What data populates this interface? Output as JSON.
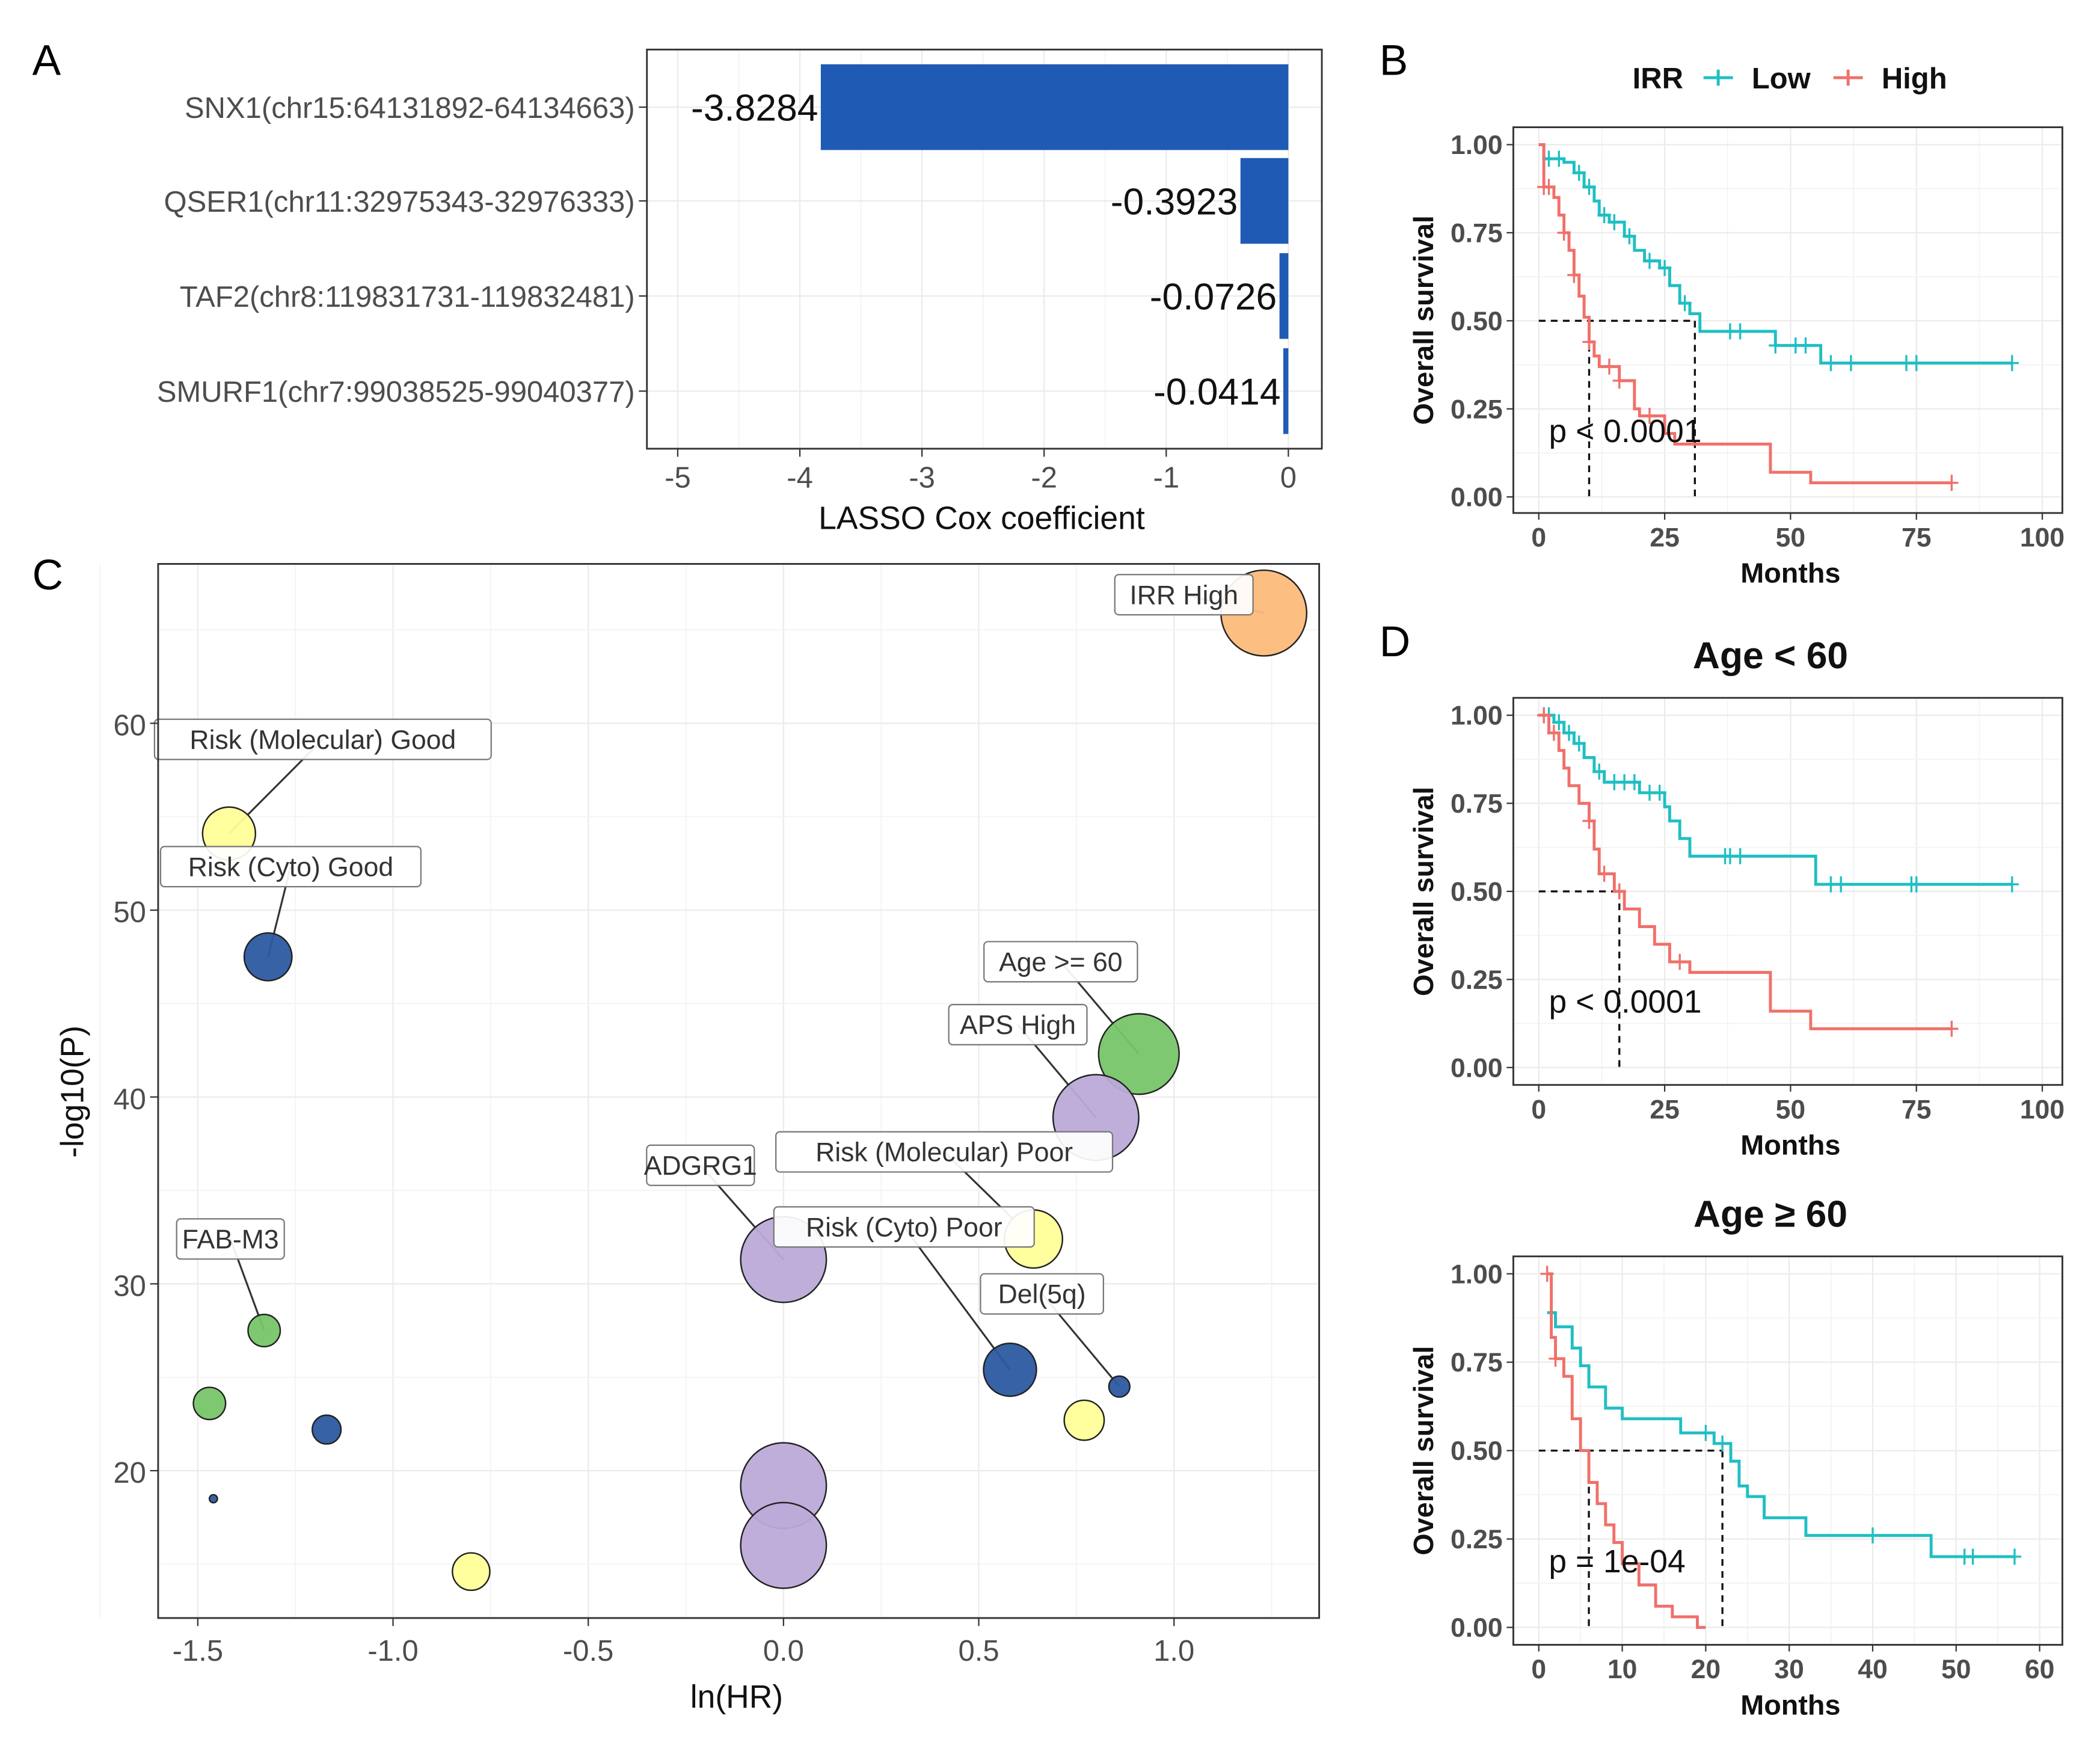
{
  "panel_labels": [
    "A",
    "B",
    "C",
    "D"
  ],
  "chart_data": [
    {
      "id": "A",
      "type": "bar",
      "orientation": "horizontal",
      "categories": [
        "SNX1(chr15:64131892-64134663)",
        "QSER1(chr11:32975343-32976333)",
        "TAF2(chr8:119831731-119832481)",
        "SMURF1(chr7:99038525-99040377)"
      ],
      "values": [
        -3.8284,
        -0.3923,
        -0.0726,
        -0.0414
      ],
      "data_labels": [
        "-3.8284",
        "-0.3923",
        "-0.0726",
        "-0.0414"
      ],
      "xlabel": "LASSO Cox coefficient",
      "xlim": [
        -5.2,
        0.25
      ],
      "xticks": [
        -5,
        -4,
        -3,
        -2,
        -1,
        0
      ],
      "xtick_labels": [
        "-5",
        "-4",
        "-3",
        "-2",
        "-1",
        "0"
      ],
      "bar_color": "#1f5bb4",
      "grid": true
    },
    {
      "id": "B",
      "type": "line",
      "subtype": "kaplan-meier",
      "legend_title": "IRR",
      "legend_position": "top",
      "xlabel": "Months",
      "ylabel": "Overall survival",
      "xlim": [
        0,
        100
      ],
      "ylim": [
        0,
        1
      ],
      "xticks": [
        0,
        25,
        50,
        75,
        100
      ],
      "xtick_labels": [
        "0",
        "25",
        "50",
        "75",
        "100"
      ],
      "yticks": [
        0,
        0.25,
        0.5,
        0.75,
        1
      ],
      "ytick_labels": [
        "0.00",
        "0.25",
        "0.50",
        "0.75",
        "1.00"
      ],
      "annotation": "p < 0.0001",
      "annotation_at": [
        2,
        0.19
      ],
      "median_survival": {
        "Low": 31,
        "High": 10
      },
      "series": [
        {
          "name": "Low",
          "color": "#1fbfc3",
          "x": [
            0,
            1,
            5,
            7,
            9,
            11,
            12,
            14,
            17,
            19,
            21,
            24,
            26,
            28,
            30,
            32,
            47,
            56,
            94
          ],
          "y": [
            1,
            0.96,
            0.95,
            0.92,
            0.88,
            0.84,
            0.8,
            0.78,
            0.74,
            0.7,
            0.67,
            0.65,
            0.6,
            0.55,
            0.52,
            0.47,
            0.43,
            0.38,
            0.38
          ],
          "censor_x": [
            2,
            4,
            8,
            10,
            13,
            15,
            18,
            22,
            25,
            29,
            38,
            40,
            47,
            51,
            53,
            58,
            62,
            73,
            75,
            94
          ]
        },
        {
          "name": "High",
          "color": "#f0706a",
          "x": [
            0,
            1,
            3,
            4,
            5,
            6,
            7,
            8,
            9,
            10,
            11,
            12,
            16,
            19,
            20,
            25,
            27,
            46,
            54,
            82
          ],
          "y": [
            1,
            0.88,
            0.85,
            0.8,
            0.75,
            0.7,
            0.63,
            0.57,
            0.51,
            0.44,
            0.4,
            0.37,
            0.33,
            0.25,
            0.23,
            0.18,
            0.15,
            0.07,
            0.04,
            0.04
          ],
          "censor_x": [
            1,
            2,
            5,
            7,
            10,
            14,
            16,
            22,
            82
          ]
        }
      ]
    },
    {
      "id": "C",
      "type": "scatter",
      "subtype": "bubble",
      "xlabel": "ln(HR)",
      "ylabel": "-log10(P)",
      "xlim": [
        -1.6,
        1.38
      ],
      "ylim": [
        11,
        67.5
      ],
      "xticks": [
        -1.5,
        -1.0,
        -0.5,
        0.0,
        0.5,
        1.0
      ],
      "xtick_labels": [
        "-1.5",
        "-1.0",
        "-0.5",
        "0.0",
        "0.5",
        "1.0"
      ],
      "yticks": [
        20,
        30,
        40,
        50,
        60
      ],
      "ytick_labels": [
        "20",
        "30",
        "40",
        "50",
        "60"
      ],
      "grid": true,
      "colors": {
        "orange": "#fdbb7b",
        "yellow": "#ffff99",
        "blue": "#2c5aa0",
        "green": "#78c56a",
        "purple": "#bcaad8"
      },
      "points": [
        {
          "label": "IRR High",
          "x": 1.23,
          "y": 65.9,
          "size": 10,
          "color": "orange"
        },
        {
          "label": "Risk (Molecular) Good",
          "x": -1.42,
          "y": 54.1,
          "size": 6.2,
          "color": "yellow"
        },
        {
          "label": "Risk (Cyto) Good",
          "x": -1.32,
          "y": 47.5,
          "size": 5.6,
          "color": "blue"
        },
        {
          "label": "Age >= 60",
          "x": 0.91,
          "y": 42.3,
          "size": 9.4,
          "color": "green"
        },
        {
          "label": "APS High",
          "x": 0.8,
          "y": 38.9,
          "size": 10,
          "color": "purple"
        },
        {
          "label": "Risk (Molecular) Poor",
          "x": 0.64,
          "y": 32.4,
          "size": 6.8,
          "color": "yellow"
        },
        {
          "label": "ADGRG1",
          "x": 0.0,
          "y": 31.3,
          "size": 10,
          "color": "purple"
        },
        {
          "label": "FAB-M3",
          "x": -1.33,
          "y": 27.5,
          "size": 3.8,
          "color": "green"
        },
        {
          "label": "Risk (Cyto) Poor",
          "x": 0.58,
          "y": 25.4,
          "size": 6.2,
          "color": "blue"
        },
        {
          "label": "Del(5q)",
          "x": 0.86,
          "y": 24.5,
          "size": 2.5,
          "color": "blue"
        },
        {
          "label": "",
          "x": -1.47,
          "y": 23.6,
          "size": 3.8,
          "color": "green"
        },
        {
          "label": "",
          "x": -1.17,
          "y": 22.2,
          "size": 3.4,
          "color": "blue"
        },
        {
          "label": "",
          "x": -1.46,
          "y": 18.5,
          "size": 1,
          "color": "blue"
        },
        {
          "label": "",
          "x": 0.77,
          "y": 22.7,
          "size": 4.7,
          "color": "yellow"
        },
        {
          "label": "",
          "x": 0.0,
          "y": 19.2,
          "size": 10,
          "color": "purple"
        },
        {
          "label": "",
          "x": 0.0,
          "y": 16.0,
          "size": 10,
          "color": "purple"
        },
        {
          "label": "",
          "x": -0.8,
          "y": 14.6,
          "size": 4.4,
          "color": "yellow"
        }
      ]
    },
    {
      "id": "D1",
      "type": "line",
      "subtype": "kaplan-meier",
      "title": "Age < 60",
      "xlabel": "Months",
      "ylabel": "Overall survival",
      "xlim": [
        0,
        100
      ],
      "ylim": [
        0,
        1
      ],
      "xticks": [
        0,
        25,
        50,
        75,
        100
      ],
      "xtick_labels": [
        "0",
        "25",
        "50",
        "75",
        "100"
      ],
      "yticks": [
        0,
        0.25,
        0.5,
        0.75,
        1
      ],
      "ytick_labels": [
        "0.00",
        "0.25",
        "0.50",
        "0.75",
        "1.00"
      ],
      "annotation": "p < 0.0001",
      "annotation_at": [
        2,
        0.19
      ],
      "median_survival": {
        "High": 16
      },
      "series": [
        {
          "name": "Low",
          "color": "#1fbfc3",
          "x": [
            0,
            3,
            5,
            7,
            9,
            11,
            13,
            20,
            25,
            26,
            28,
            30,
            55,
            94
          ],
          "y": [
            1,
            0.98,
            0.95,
            0.92,
            0.88,
            0.84,
            0.81,
            0.78,
            0.74,
            0.7,
            0.65,
            0.6,
            0.52,
            0.52
          ],
          "censor_x": [
            1,
            2,
            4,
            6,
            8,
            12,
            15,
            17,
            19,
            22,
            24,
            37,
            38,
            40,
            58,
            60,
            74,
            75,
            94
          ]
        },
        {
          "name": "High",
          "color": "#f0706a",
          "x": [
            0,
            2,
            4,
            5,
            6,
            8,
            10,
            11,
            12,
            15,
            17,
            20,
            23,
            26,
            30,
            46,
            54,
            82
          ],
          "y": [
            1,
            0.95,
            0.9,
            0.85,
            0.8,
            0.75,
            0.7,
            0.62,
            0.55,
            0.5,
            0.45,
            0.4,
            0.35,
            0.3,
            0.27,
            0.16,
            0.11,
            0.11
          ],
          "censor_x": [
            1,
            3,
            10,
            13,
            16,
            28,
            82
          ]
        }
      ]
    },
    {
      "id": "D2",
      "type": "line",
      "subtype": "kaplan-meier",
      "title": "Age ≥ 60",
      "xlabel": "Months",
      "ylabel": "Overall survival",
      "xlim": [
        0,
        60
      ],
      "ylim": [
        0,
        1
      ],
      "xticks": [
        0,
        10,
        20,
        30,
        40,
        50,
        60
      ],
      "xtick_labels": [
        "0",
        "10",
        "20",
        "30",
        "40",
        "50",
        "60"
      ],
      "yticks": [
        0,
        0.25,
        0.5,
        0.75,
        1
      ],
      "ytick_labels": [
        "0.00",
        "0.25",
        "0.50",
        "0.75",
        "1.00"
      ],
      "annotation": "p = 1e-04",
      "annotation_at": [
        1.2,
        0.19
      ],
      "median_survival": {
        "Low": 22,
        "High": 6
      },
      "series": [
        {
          "name": "Low",
          "color": "#1fbfc3",
          "x": [
            1,
            2,
            4,
            5,
            6,
            8,
            10,
            17,
            21,
            23,
            24,
            25,
            27,
            32,
            47,
            57
          ],
          "y": [
            0.89,
            0.85,
            0.79,
            0.74,
            0.68,
            0.62,
            0.59,
            0.55,
            0.52,
            0.47,
            0.4,
            0.37,
            0.31,
            0.26,
            0.2,
            0.2
          ],
          "censor_x": [
            20,
            22,
            40,
            51,
            52,
            57
          ]
        },
        {
          "name": "High",
          "color": "#f0706a",
          "x": [
            1,
            1.5,
            2,
            3,
            4,
            5,
            6,
            7,
            8,
            9,
            10,
            12,
            14,
            16,
            19,
            20
          ],
          "y": [
            1,
            0.82,
            0.76,
            0.71,
            0.59,
            0.5,
            0.41,
            0.35,
            0.29,
            0.24,
            0.18,
            0.12,
            0.06,
            0.03,
            0.0,
            0.0
          ],
          "censor_x": [
            1,
            2
          ]
        }
      ]
    }
  ]
}
